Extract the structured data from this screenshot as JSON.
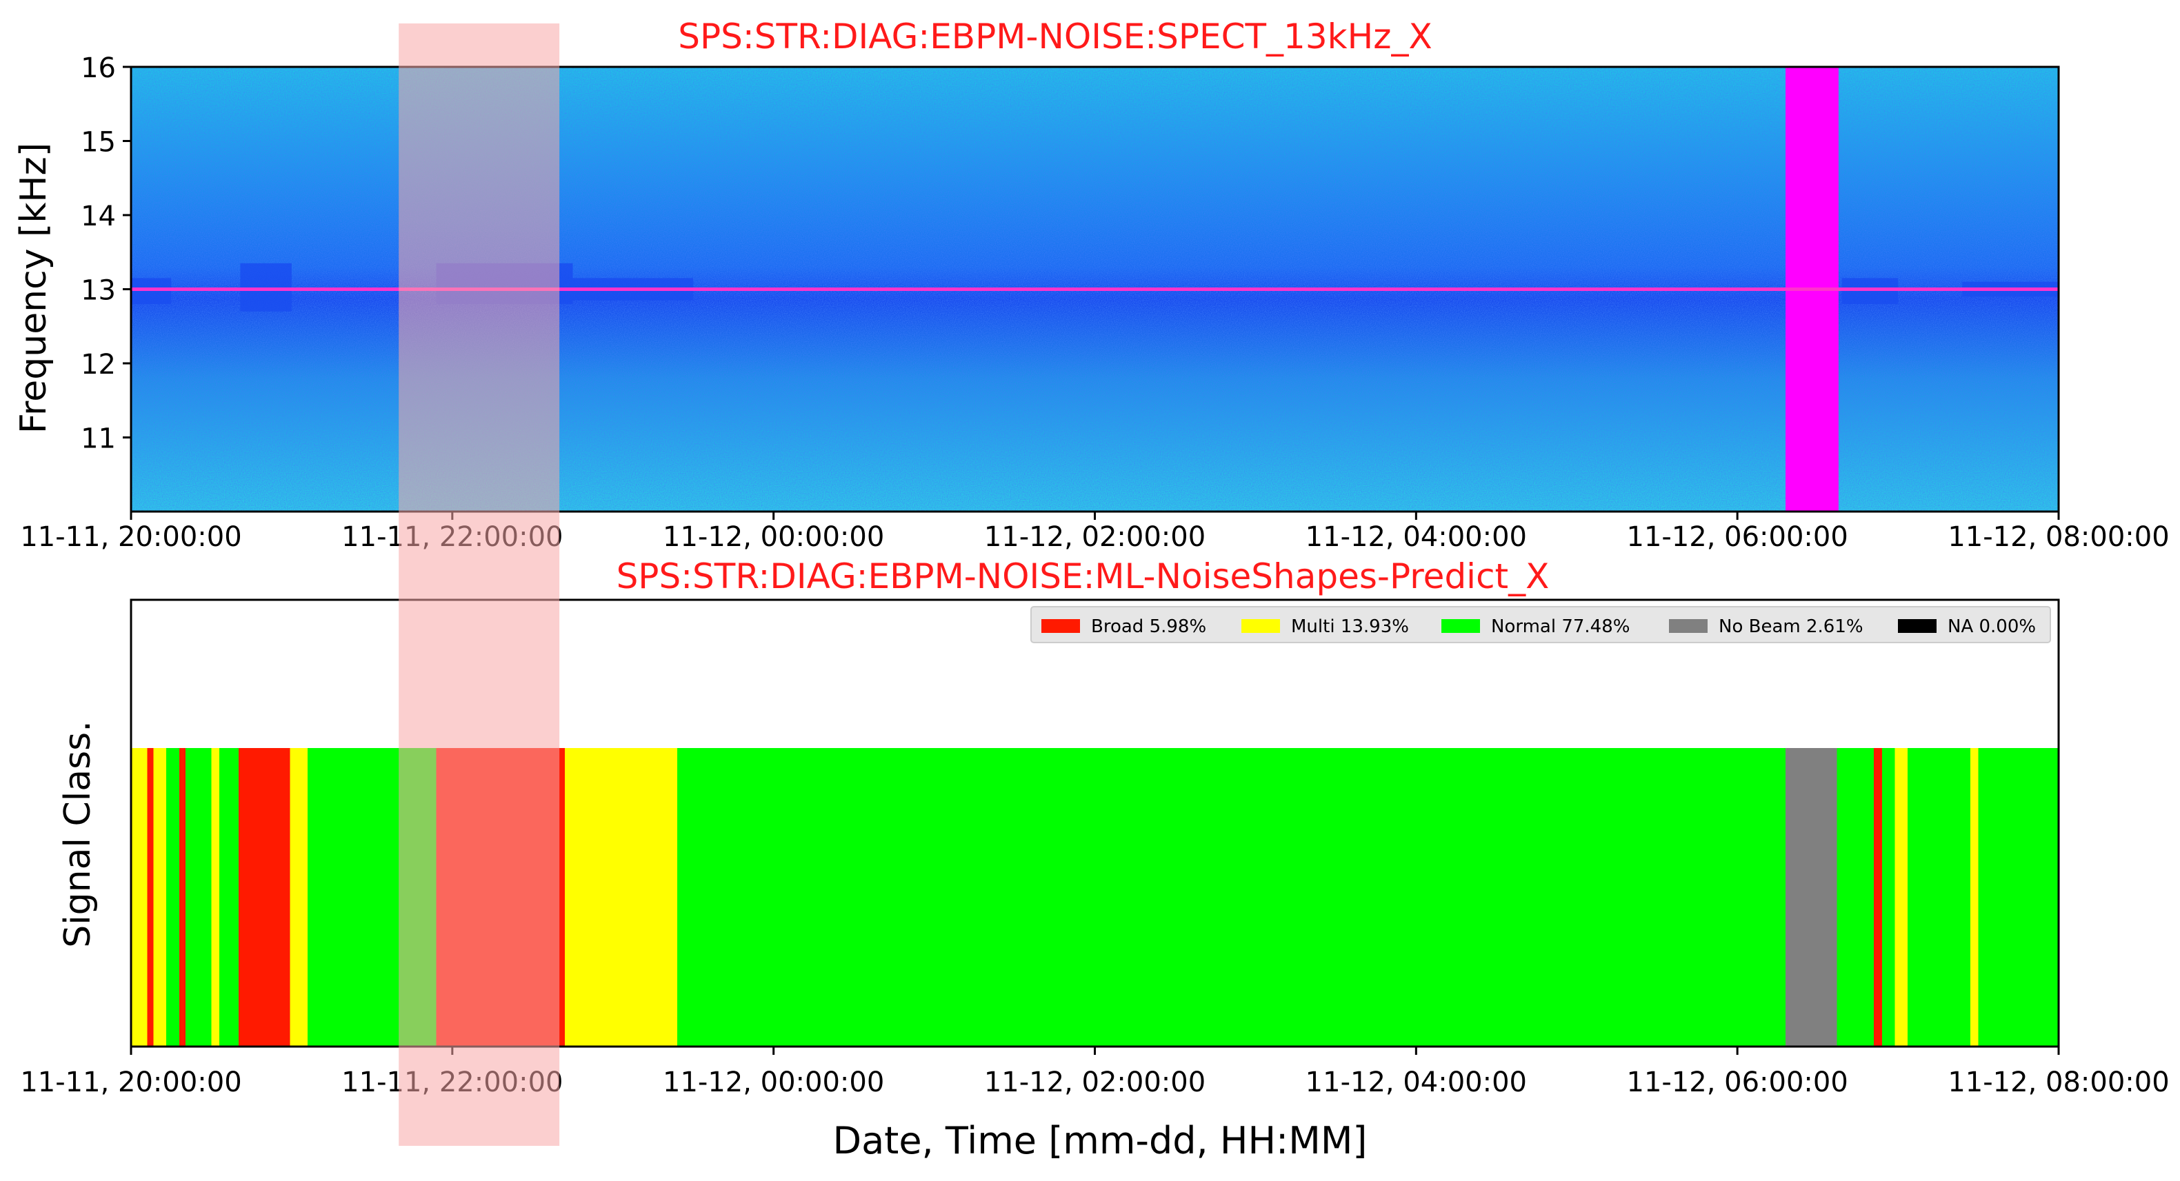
{
  "figure": {
    "xlabel": "Date, Time [mm-dd, HH:MM]",
    "time_range": [
      "2023-11-11T20:00:00",
      "2023-11-12T08:00:00"
    ],
    "highlight_window": {
      "start": "2023-11-11T21:40:00",
      "end": "2023-11-11T22:40:00",
      "color": "#f7a8a8"
    }
  },
  "chart_data": [
    {
      "type": "heatmap",
      "title": "SPS:STR:DIAG:EBPM-NOISE:SPECT_13kHz_X",
      "title_color": "#ff1a1a",
      "ylabel": "Frequency [kHz]",
      "ylim": [
        10.0,
        16.0
      ],
      "y_ticks": [
        "11",
        "12",
        "13",
        "14",
        "15",
        "16"
      ],
      "y_tick_values": [
        11,
        12,
        13,
        14,
        15,
        16
      ],
      "x_ticks": [
        "11-11, 20:00:00",
        "11-11, 22:00:00",
        "11-12, 00:00:00",
        "11-12, 02:00:00",
        "11-12, 04:00:00",
        "11-12, 06:00:00",
        "11-12, 08:00:00"
      ],
      "x_tick_hours": [
        0,
        2,
        4,
        6,
        8,
        10,
        12
      ],
      "colormap": {
        "low": "#33d6e8",
        "mid": "#1a4df0",
        "high": "#ff00ff"
      },
      "carrier_line": {
        "frequency_khz": 13.0,
        "color": "#ff33cc"
      },
      "features": [
        {
          "kind": "band",
          "start_h": 0.0,
          "end_h": 0.25,
          "fmin": 12.8,
          "fmax": 13.15
        },
        {
          "kind": "band",
          "start_h": 0.68,
          "end_h": 1.0,
          "fmin": 12.7,
          "fmax": 13.35
        },
        {
          "kind": "band",
          "start_h": 1.9,
          "end_h": 2.75,
          "fmin": 12.8,
          "fmax": 13.35
        },
        {
          "kind": "band",
          "start_h": 2.75,
          "end_h": 3.5,
          "fmin": 12.85,
          "fmax": 13.15
        },
        {
          "kind": "saturated",
          "start_h": 10.3,
          "end_h": 10.63,
          "fmin": 10.0,
          "fmax": 16.0
        },
        {
          "kind": "band",
          "start_h": 10.65,
          "end_h": 11.0,
          "fmin": 12.8,
          "fmax": 13.15
        },
        {
          "kind": "band",
          "start_h": 11.4,
          "end_h": 12.0,
          "fmin": 12.9,
          "fmax": 13.1
        }
      ]
    },
    {
      "type": "bar",
      "title": "SPS:STR:DIAG:EBPM-NOISE:ML-NoiseShapes-Predict_X",
      "title_color": "#ff1a1a",
      "ylabel": "Signal Class.",
      "x_ticks": [
        "11-11, 20:00:00",
        "11-11, 22:00:00",
        "11-12, 00:00:00",
        "11-12, 02:00:00",
        "11-12, 04:00:00",
        "11-12, 06:00:00",
        "11-12, 08:00:00"
      ],
      "x_tick_hours": [
        0,
        2,
        4,
        6,
        8,
        10,
        12
      ],
      "legend_position": "top-right",
      "classes": [
        {
          "name": "Broad",
          "pct": "5.98%",
          "color": "#ff1a00"
        },
        {
          "name": "Multi",
          "pct": "13.93%",
          "color": "#ffff00"
        },
        {
          "name": "Normal",
          "pct": "77.48%",
          "color": "#00ff00"
        },
        {
          "name": "No Beam",
          "pct": "2.61%",
          "color": "#808080"
        },
        {
          "name": "NA",
          "pct": "0.00%",
          "color": "#000000"
        }
      ],
      "segments": [
        {
          "start_h": 0.0,
          "end_h": 0.1,
          "class": "Multi"
        },
        {
          "start_h": 0.1,
          "end_h": 0.14,
          "class": "Broad"
        },
        {
          "start_h": 0.14,
          "end_h": 0.22,
          "class": "Multi"
        },
        {
          "start_h": 0.22,
          "end_h": 0.3,
          "class": "Normal"
        },
        {
          "start_h": 0.3,
          "end_h": 0.34,
          "class": "Broad"
        },
        {
          "start_h": 0.34,
          "end_h": 0.5,
          "class": "Normal"
        },
        {
          "start_h": 0.5,
          "end_h": 0.55,
          "class": "Multi"
        },
        {
          "start_h": 0.55,
          "end_h": 0.67,
          "class": "Normal"
        },
        {
          "start_h": 0.67,
          "end_h": 0.99,
          "class": "Broad"
        },
        {
          "start_h": 0.99,
          "end_h": 1.1,
          "class": "Multi"
        },
        {
          "start_h": 1.1,
          "end_h": 1.9,
          "class": "Normal"
        },
        {
          "start_h": 1.9,
          "end_h": 2.7,
          "class": "Broad"
        },
        {
          "start_h": 2.7,
          "end_h": 2.83,
          "class": "Multi"
        },
        {
          "start_h": 2.83,
          "end_h": 3.4,
          "class": "Multi"
        },
        {
          "start_h": 3.4,
          "end_h": 10.3,
          "class": "Normal"
        },
        {
          "start_h": 10.3,
          "end_h": 10.62,
          "class": "No Beam"
        },
        {
          "start_h": 10.62,
          "end_h": 10.85,
          "class": "Normal"
        },
        {
          "start_h": 10.85,
          "end_h": 10.9,
          "class": "Broad"
        },
        {
          "start_h": 10.9,
          "end_h": 10.98,
          "class": "Normal"
        },
        {
          "start_h": 10.98,
          "end_h": 11.06,
          "class": "Multi"
        },
        {
          "start_h": 11.06,
          "end_h": 11.45,
          "class": "Normal"
        },
        {
          "start_h": 11.45,
          "end_h": 11.5,
          "class": "Multi"
        },
        {
          "start_h": 11.5,
          "end_h": 12.0,
          "class": "Normal"
        }
      ]
    }
  ]
}
